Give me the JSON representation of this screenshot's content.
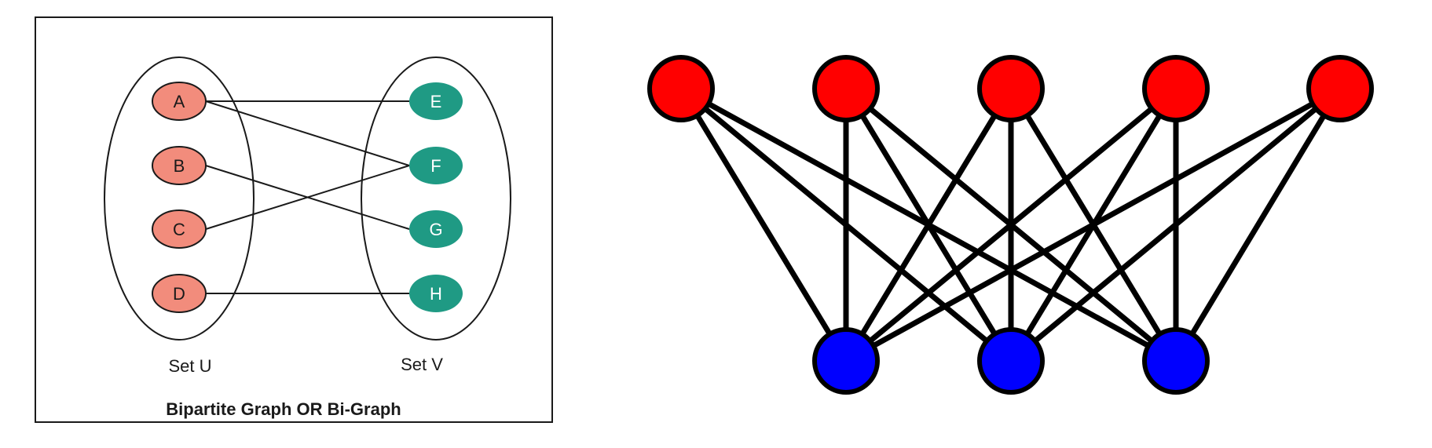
{
  "bipartite_diagram": {
    "title": "Bipartite Graph OR Bi-Graph",
    "sets": [
      {
        "id": "U",
        "label": "Set U",
        "nodes": [
          "A",
          "B",
          "C",
          "D"
        ],
        "fill": "#f28c7c"
      },
      {
        "id": "V",
        "label": "Set V",
        "nodes": [
          "E",
          "F",
          "G",
          "H"
        ],
        "fill": "#1f9a84"
      }
    ],
    "edges": [
      [
        "A",
        "E"
      ],
      [
        "A",
        "F"
      ],
      [
        "B",
        "G"
      ],
      [
        "C",
        "F"
      ],
      [
        "D",
        "H"
      ]
    ]
  },
  "complete_bipartite": {
    "top_color": "#ff0000",
    "bottom_color": "#0000ff",
    "edge_color": "#000000",
    "top_count": 5,
    "bottom_count": 3
  }
}
